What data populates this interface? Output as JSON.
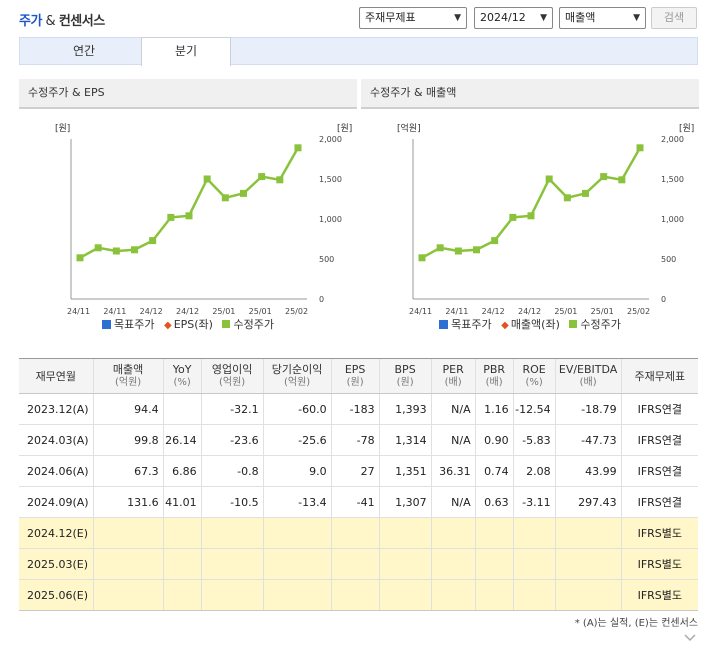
{
  "header": {
    "title_a": "주가",
    "title_amp": " & ",
    "title_b": "컨센서스",
    "select_type": "주재무제표",
    "select_period": "2024/12",
    "select_metric": "매출액",
    "search_label": "검색"
  },
  "tabs": {
    "annual": "연간",
    "quarterly": "분기"
  },
  "charts": [
    {
      "title": "수정주가 & EPS",
      "left_unit": "[원]",
      "right_unit": "[원]",
      "legend": [
        "목표주가",
        "EPS(좌)",
        "수정주가"
      ]
    },
    {
      "title": "수정주가 & 매출액",
      "left_unit": "[억원]",
      "right_unit": "[원]",
      "legend": [
        "목표주가",
        "매출액(좌)",
        "수정주가"
      ]
    }
  ],
  "chart_data": [
    {
      "type": "line",
      "x": [
        "24/11",
        "",
        "24/11",
        "",
        "24/12",
        "",
        "24/12",
        "",
        "25/01",
        "",
        "25/01",
        "",
        "25/02"
      ],
      "x_tick_labels": [
        "24/11",
        "24/11",
        "24/12",
        "24/12",
        "25/01",
        "25/01",
        "25/02"
      ],
      "right_ylim": [
        0,
        2000
      ],
      "right_ticks": [
        "0",
        "500",
        "1,000",
        "1,500",
        "2,000"
      ],
      "series": [
        {
          "name": "수정주가",
          "color": "#8ac23b",
          "values": [
            515,
            640,
            600,
            615,
            730,
            1020,
            1040,
            1500,
            1265,
            1320,
            1530,
            1490,
            1890
          ]
        }
      ],
      "legend_position": "bottom",
      "grid": false
    },
    {
      "type": "line",
      "x": [
        "24/11",
        "",
        "24/11",
        "",
        "24/12",
        "",
        "24/12",
        "",
        "25/01",
        "",
        "25/01",
        "",
        "25/02"
      ],
      "x_tick_labels": [
        "24/11",
        "24/11",
        "24/12",
        "24/12",
        "25/01",
        "25/01",
        "25/02"
      ],
      "right_ylim": [
        0,
        2000
      ],
      "right_ticks": [
        "0",
        "500",
        "1,000",
        "1,500",
        "2,000"
      ],
      "series": [
        {
          "name": "수정주가",
          "color": "#8ac23b",
          "values": [
            515,
            640,
            600,
            615,
            730,
            1020,
            1040,
            1500,
            1265,
            1320,
            1530,
            1490,
            1890
          ]
        }
      ],
      "legend_position": "bottom",
      "grid": false
    }
  ],
  "table": {
    "headers": [
      {
        "label": "재무연월",
        "unit": ""
      },
      {
        "label": "매출액",
        "unit": "(억원)"
      },
      {
        "label": "YoY",
        "unit": "(%)"
      },
      {
        "label": "영업이익",
        "unit": "(억원)"
      },
      {
        "label": "당기순이익",
        "unit": "(억원)"
      },
      {
        "label": "EPS",
        "unit": "(원)"
      },
      {
        "label": "BPS",
        "unit": "(원)"
      },
      {
        "label": "PER",
        "unit": "(배)"
      },
      {
        "label": "PBR",
        "unit": "(배)"
      },
      {
        "label": "ROE",
        "unit": "(%)"
      },
      {
        "label": "EV/EBITDA",
        "unit": "(배)"
      },
      {
        "label": "주재무제표",
        "unit": ""
      }
    ],
    "rows": [
      {
        "est": false,
        "cells": [
          "2023.12(A)",
          "94.4",
          "",
          "-32.1",
          "-60.0",
          "-183",
          "1,393",
          "N/A",
          "1.16",
          "-12.54",
          "-18.79",
          "IFRS연결"
        ]
      },
      {
        "est": false,
        "cells": [
          "2024.03(A)",
          "99.8",
          "26.14",
          "-23.6",
          "-25.6",
          "-78",
          "1,314",
          "N/A",
          "0.90",
          "-5.83",
          "-47.73",
          "IFRS연결"
        ]
      },
      {
        "est": false,
        "cells": [
          "2024.06(A)",
          "67.3",
          "6.86",
          "-0.8",
          "9.0",
          "27",
          "1,351",
          "36.31",
          "0.74",
          "2.08",
          "43.99",
          "IFRS연결"
        ]
      },
      {
        "est": false,
        "cells": [
          "2024.09(A)",
          "131.6",
          "41.01",
          "-10.5",
          "-13.4",
          "-41",
          "1,307",
          "N/A",
          "0.63",
          "-3.11",
          "297.43",
          "IFRS연결"
        ]
      },
      {
        "est": true,
        "cells": [
          "2024.12(E)",
          "",
          "",
          "",
          "",
          "",
          "",
          "",
          "",
          "",
          "",
          "IFRS별도"
        ]
      },
      {
        "est": true,
        "cells": [
          "2025.03(E)",
          "",
          "",
          "",
          "",
          "",
          "",
          "",
          "",
          "",
          "",
          "IFRS별도"
        ]
      },
      {
        "est": true,
        "cells": [
          "2025.06(E)",
          "",
          "",
          "",
          "",
          "",
          "",
          "",
          "",
          "",
          "",
          "IFRS별도"
        ]
      }
    ]
  },
  "note": "* (A)는 실적, (E)는 컨센서스"
}
